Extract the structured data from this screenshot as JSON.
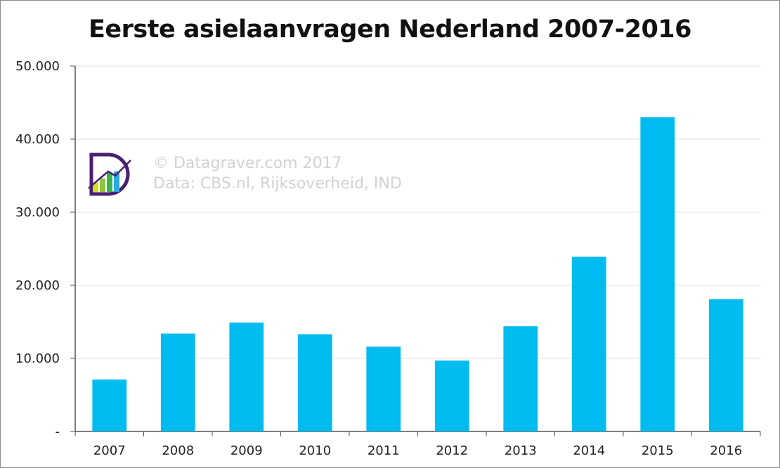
{
  "chart_data": {
    "type": "bar",
    "title": "Eerste asielaanvragen Nederland 2007-2016",
    "categories": [
      "2007",
      "2008",
      "2009",
      "2010",
      "2011",
      "2012",
      "2013",
      "2014",
      "2015",
      "2016"
    ],
    "values": [
      7100,
      13400,
      14900,
      13300,
      11600,
      9700,
      14400,
      23900,
      43000,
      18100
    ],
    "ylim": [
      0,
      50000
    ],
    "yticks": [
      0,
      10000,
      20000,
      30000,
      40000,
      50000
    ],
    "ytick_labels": [
      "-",
      "10.000",
      "20.000",
      "30.000",
      "40.000",
      "50.000"
    ],
    "xlabel": "",
    "ylabel": "",
    "grid": true,
    "bar_color": "#00bbef"
  },
  "watermark": {
    "line1": "© Datagraver.com 2017",
    "line2": "Data: CBS.nl, Rijksoverheid, IND"
  },
  "colors": {
    "grid": "#ececec",
    "axis": "#555555",
    "logo_ring": "#4a1f6e"
  }
}
